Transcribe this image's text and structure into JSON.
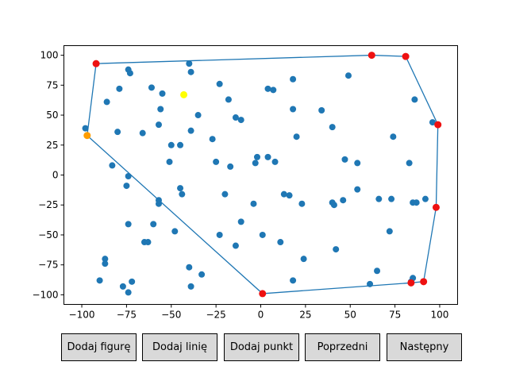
{
  "buttons": {
    "add_shape": "Dodaj figurę",
    "add_line": "Dodaj linię",
    "add_point": "Dodaj punkt",
    "prev": "Poprzedni",
    "next": "Następny"
  },
  "chart_data": {
    "type": "scatter",
    "title": "",
    "xlabel": "",
    "ylabel": "",
    "xlim": [
      -110,
      110
    ],
    "ylim": [
      -108,
      108
    ],
    "xticks": [
      -100,
      -75,
      -50,
      -25,
      0,
      25,
      50,
      75,
      100
    ],
    "yticks": [
      -100,
      -75,
      -50,
      -25,
      0,
      25,
      50,
      75,
      100
    ],
    "grid": false,
    "colors": {
      "points": "#1f77b4",
      "hull_line": "#1f77b4",
      "hull_vertices": "#ee1111",
      "start_point": "#ff9d00",
      "highlight_point": "#ffff00"
    },
    "points": [
      [
        -98,
        39
      ],
      [
        -90,
        -88
      ],
      [
        -87,
        -74
      ],
      [
        -87,
        -70
      ],
      [
        -86,
        61
      ],
      [
        -83,
        8
      ],
      [
        -80,
        36
      ],
      [
        -79,
        72
      ],
      [
        -77,
        -93
      ],
      [
        -75,
        -9
      ],
      [
        -74,
        -1
      ],
      [
        -74,
        -98
      ],
      [
        -74,
        -41
      ],
      [
        -74,
        88
      ],
      [
        -73,
        85
      ],
      [
        -72,
        -89
      ],
      [
        -66,
        35
      ],
      [
        -65,
        -56
      ],
      [
        -63,
        -56
      ],
      [
        -61,
        73
      ],
      [
        -60,
        -41
      ],
      [
        -57,
        -24
      ],
      [
        -57,
        -21
      ],
      [
        -57,
        42
      ],
      [
        -56,
        55
      ],
      [
        -55,
        68
      ],
      [
        -51,
        11
      ],
      [
        -50,
        25
      ],
      [
        -48,
        -47
      ],
      [
        -45,
        25
      ],
      [
        -45,
        -11
      ],
      [
        -44,
        -16
      ],
      [
        -40,
        93
      ],
      [
        -39,
        86
      ],
      [
        -39,
        37
      ],
      [
        -40,
        -77
      ],
      [
        -39,
        -93
      ],
      [
        -35,
        50
      ],
      [
        -33,
        -83
      ],
      [
        -27,
        30
      ],
      [
        -25,
        11
      ],
      [
        -23,
        -50
      ],
      [
        -23,
        76
      ],
      [
        -20,
        -16
      ],
      [
        -18,
        63
      ],
      [
        -17,
        7
      ],
      [
        -14,
        -59
      ],
      [
        -14,
        48
      ],
      [
        -11,
        -39
      ],
      [
        -11,
        46
      ],
      [
        -4,
        -24
      ],
      [
        -2,
        15
      ],
      [
        -3,
        10
      ],
      [
        1,
        -50
      ],
      [
        4,
        15
      ],
      [
        4,
        72
      ],
      [
        7,
        71
      ],
      [
        8,
        11
      ],
      [
        11,
        -56
      ],
      [
        13,
        -16
      ],
      [
        16,
        -17
      ],
      [
        18,
        -88
      ],
      [
        18,
        80
      ],
      [
        18,
        55
      ],
      [
        20,
        32
      ],
      [
        23,
        -24
      ],
      [
        24,
        -70
      ],
      [
        34,
        54
      ],
      [
        40,
        40
      ],
      [
        40,
        -23
      ],
      [
        41,
        -25
      ],
      [
        42,
        -62
      ],
      [
        46,
        -21
      ],
      [
        47,
        13
      ],
      [
        49,
        83
      ],
      [
        54,
        -12
      ],
      [
        54,
        10
      ],
      [
        61,
        -91
      ],
      [
        65,
        -80
      ],
      [
        66,
        -20
      ],
      [
        72,
        -47
      ],
      [
        73,
        -20
      ],
      [
        74,
        32
      ],
      [
        83,
        10
      ],
      [
        84,
        -89
      ],
      [
        85,
        -86
      ],
      [
        85,
        -23
      ],
      [
        86,
        63
      ],
      [
        87,
        -23
      ],
      [
        92,
        -20
      ],
      [
        96,
        44
      ]
    ],
    "hull": [
      [
        -92,
        93
      ],
      [
        62,
        100
      ],
      [
        81,
        99
      ],
      [
        99,
        42
      ],
      [
        98,
        -27
      ],
      [
        91,
        -89
      ],
      [
        84,
        -90
      ],
      [
        1,
        -99
      ],
      [
        -97,
        33
      ],
      [
        -92,
        93
      ]
    ],
    "hull_vertices": [
      [
        -92,
        93
      ],
      [
        62,
        100
      ],
      [
        81,
        99
      ],
      [
        99,
        42
      ],
      [
        98,
        -27
      ],
      [
        91,
        -89
      ],
      [
        84,
        -90
      ],
      [
        1,
        -99
      ]
    ],
    "start_point": [
      -97,
      33
    ],
    "highlight_point": [
      -43,
      67
    ]
  }
}
